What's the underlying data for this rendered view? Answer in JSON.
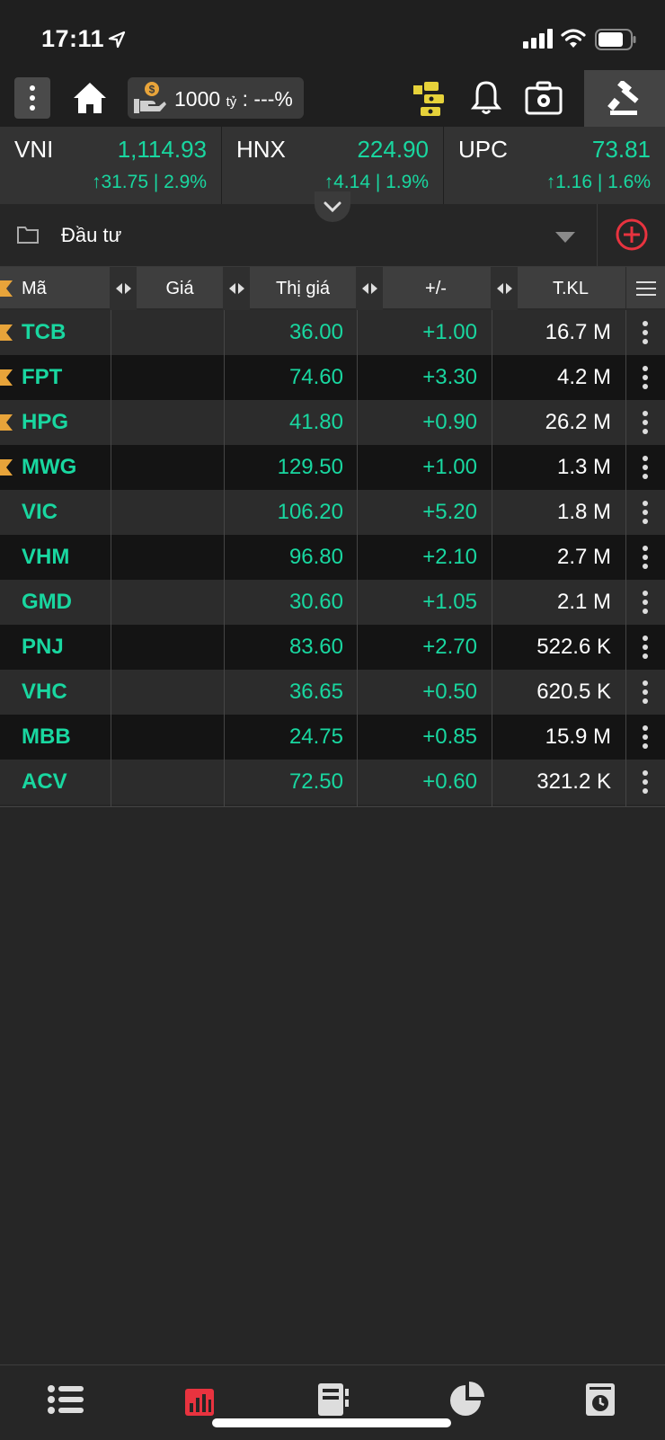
{
  "status_bar": {
    "time": "17:11"
  },
  "toolbar": {
    "fund_value": "1000",
    "fund_unit": "tỷ",
    "fund_pct": " : ---%"
  },
  "indices": [
    {
      "name": "VNI",
      "value": "1,114.93",
      "change": "↑31.75 | 2.9%"
    },
    {
      "name": "HNX",
      "value": "224.90",
      "change": "↑4.14 | 1.9%"
    },
    {
      "name": "UPC",
      "value": "73.81",
      "change": "↑1.16 | 1.6%"
    }
  ],
  "watchlist": {
    "name": "Đầu tư"
  },
  "table": {
    "headers": {
      "symbol": "Mã",
      "price": "Giá",
      "market_price": "Thị giá",
      "change": "+/-",
      "volume": "T.KL"
    },
    "rows": [
      {
        "symbol": "TCB",
        "price": "",
        "market_price": "36.00",
        "change": "+1.00",
        "volume": "16.7 M",
        "flagged": true
      },
      {
        "symbol": "FPT",
        "price": "",
        "market_price": "74.60",
        "change": "+3.30",
        "volume": "4.2 M",
        "flagged": true
      },
      {
        "symbol": "HPG",
        "price": "",
        "market_price": "41.80",
        "change": "+0.90",
        "volume": "26.2 M",
        "flagged": true
      },
      {
        "symbol": "MWG",
        "price": "",
        "market_price": "129.50",
        "change": "+1.00",
        "volume": "1.3 M",
        "flagged": true
      },
      {
        "symbol": "VIC",
        "price": "",
        "market_price": "106.20",
        "change": "+5.20",
        "volume": "1.8 M",
        "flagged": false
      },
      {
        "symbol": "VHM",
        "price": "",
        "market_price": "96.80",
        "change": "+2.10",
        "volume": "2.7 M",
        "flagged": false
      },
      {
        "symbol": "GMD",
        "price": "",
        "market_price": "30.60",
        "change": "+1.05",
        "volume": "2.1 M",
        "flagged": false
      },
      {
        "symbol": "PNJ",
        "price": "",
        "market_price": "83.60",
        "change": "+2.70",
        "volume": "522.6 K",
        "flagged": false
      },
      {
        "symbol": "VHC",
        "price": "",
        "market_price": "36.65",
        "change": "+0.50",
        "volume": "620.5 K",
        "flagged": false
      },
      {
        "symbol": "MBB",
        "price": "",
        "market_price": "24.75",
        "change": "+0.85",
        "volume": "15.9 M",
        "flagged": false
      },
      {
        "symbol": "ACV",
        "price": "",
        "market_price": "72.50",
        "change": "+0.60",
        "volume": "321.2 K",
        "flagged": false
      }
    ]
  },
  "colors": {
    "up": "#19d7a0",
    "accent_red": "#e8333f",
    "flag": "#e8a43a",
    "background": "#262626"
  },
  "bottom_nav": {
    "items": [
      {
        "icon": "list-icon",
        "active": false
      },
      {
        "icon": "bar-chart-icon",
        "active": true
      },
      {
        "icon": "notebook-icon",
        "active": false
      },
      {
        "icon": "pie-chart-icon",
        "active": false
      },
      {
        "icon": "order-history-icon",
        "active": false
      }
    ]
  }
}
